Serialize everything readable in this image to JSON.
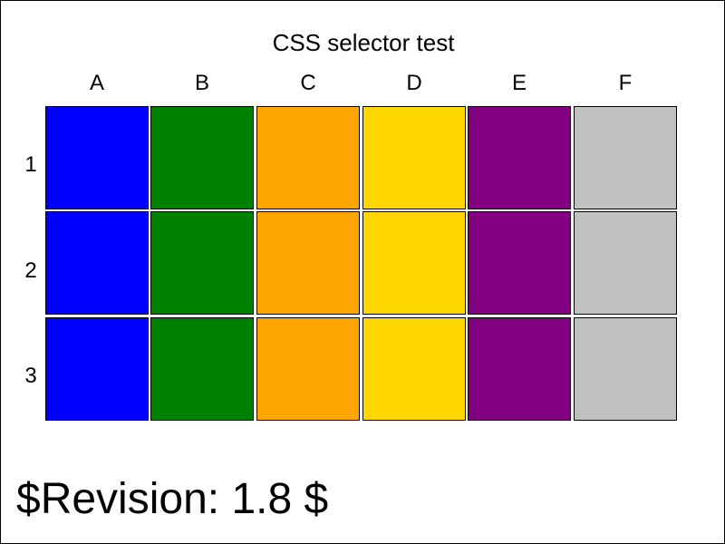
{
  "title": "CSS selector test",
  "columns": [
    "A",
    "B",
    "C",
    "D",
    "E",
    "F"
  ],
  "rows": [
    "1",
    "2",
    "3"
  ],
  "column_colors": [
    "#0000ff",
    "#008000",
    "#ffa500",
    "#ffd700",
    "#800080",
    "#c0c0c0"
  ],
  "revision": "$Revision: 1.8 $"
}
